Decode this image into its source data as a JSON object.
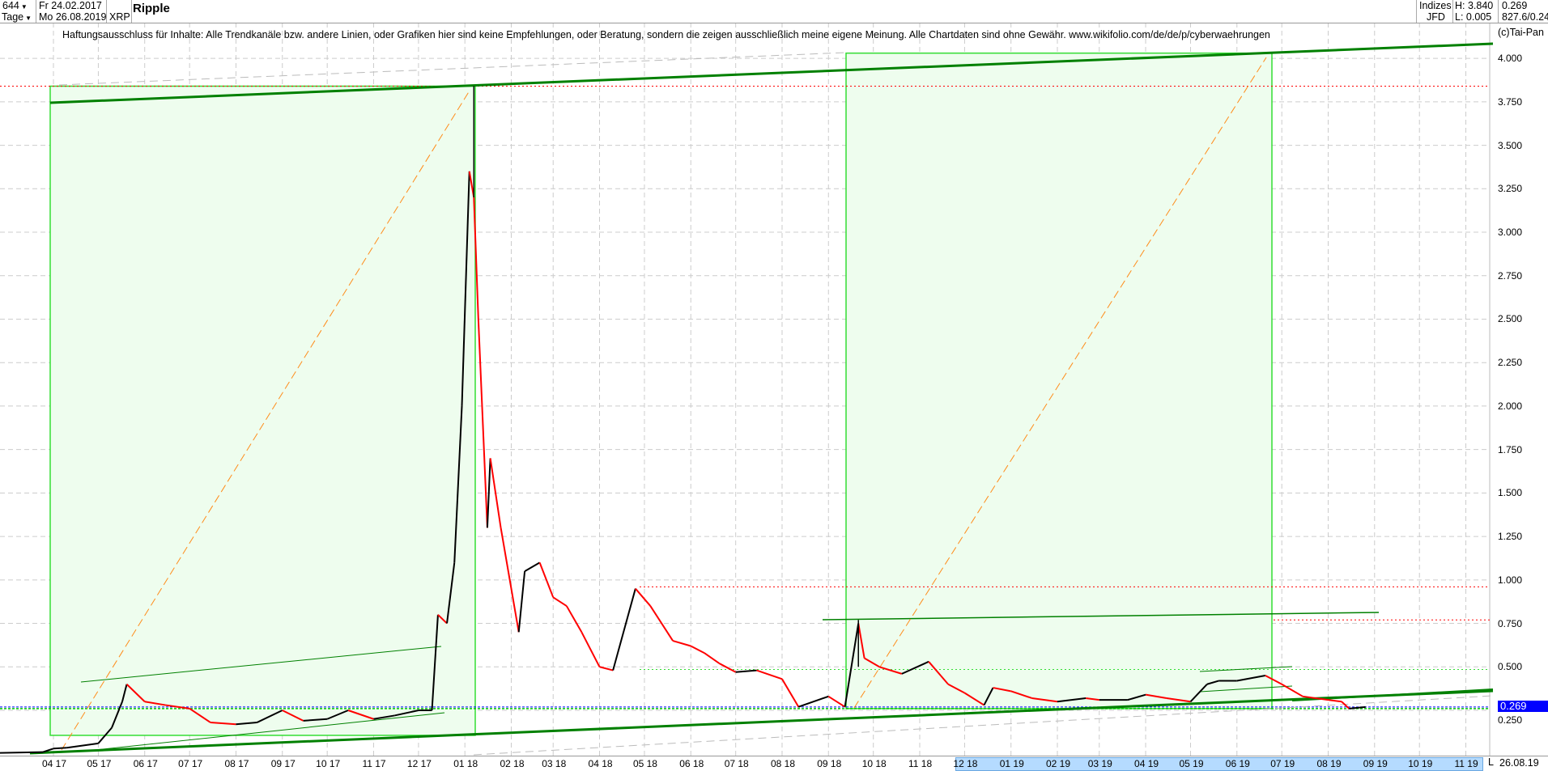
{
  "header": {
    "bars_count": "644",
    "period": "Tage",
    "start_date": "Fr 24.02.2017",
    "end_date": "Mo 26.08.2019",
    "symbol": "XRP",
    "title": "Ripple",
    "group": "Indizes",
    "source": "JFD",
    "high": "H: 3.840",
    "low": "L: 0.005",
    "last": "0.269",
    "extra": "827.6/0.24"
  },
  "disclaimer": "Haftungsausschluss für Inhalte: Alle Trendkanäle bzw. andere Linien, oder Grafiken hier sind keine Empfehlungen, oder Beratung, sondern die zeigen ausschließlich meine eigene Meinung. Alle Chartdaten sind ohne Gewähr.  www.wikifolio.com/de/de/p/cyberwaehrungen",
  "copyright": "(c)Tai-Pan",
  "footer": {
    "mode": "L",
    "last_date": "26.08.19"
  },
  "colors": {
    "up": "#000000",
    "down": "#ff0000",
    "trend": "#008000",
    "box_fill": "#eefdee",
    "box_border": "#33dd33",
    "fib": "#ff8c1a",
    "level": "#ff0000",
    "price_tag": "#0000ff"
  },
  "chart_data": {
    "type": "line",
    "ylim": [
      0,
      4.1
    ],
    "yticks": [
      "0.250",
      "0.500",
      "0.750",
      "1.000",
      "1.250",
      "1.500",
      "1.750",
      "2.000",
      "2.250",
      "2.500",
      "2.750",
      "3.000",
      "3.250",
      "3.500",
      "3.750",
      "4.000"
    ],
    "xticks": [
      "04 17",
      "05 17",
      "06 17",
      "07 17",
      "08 17",
      "09 17",
      "10 17",
      "11 17",
      "12 17",
      "01 18",
      "02 18",
      "03 18",
      "04 18",
      "05 18",
      "06 18",
      "07 18",
      "08 18",
      "09 18",
      "10 18",
      "11 18",
      "12 18",
      "01 19",
      "02 19",
      "03 19",
      "04 19",
      "05 19",
      "06 19",
      "07 19",
      "08 19",
      "09 19",
      "10 19",
      "11 19"
    ],
    "grid": true,
    "last_price": "0.269",
    "levels": [
      3.84,
      0.96,
      0.77,
      0.485,
      0.26
    ],
    "series": [
      {
        "dates": [
          "2017-02-24",
          "2017-03-25",
          "2017-04-01",
          "2017-04-10",
          "2017-05-01",
          "2017-05-10",
          "2017-05-17",
          "2017-05-20",
          "2017-06-01",
          "2017-06-15",
          "2017-07-01",
          "2017-07-15",
          "2017-08-01",
          "2017-08-15",
          "2017-09-01",
          "2017-09-15",
          "2017-10-01",
          "2017-10-15",
          "2017-11-01",
          "2017-11-15",
          "2017-12-01",
          "2017-12-10",
          "2017-12-14",
          "2017-12-20",
          "2017-12-25",
          "2017-12-30",
          "2018-01-04",
          "2018-01-07",
          "2018-01-10",
          "2018-01-16",
          "2018-01-18",
          "2018-01-25",
          "2018-02-06",
          "2018-02-10",
          "2018-02-20",
          "2018-03-01",
          "2018-03-10",
          "2018-03-20",
          "2018-04-01",
          "2018-04-10",
          "2018-04-25",
          "2018-05-05",
          "2018-05-20",
          "2018-06-01",
          "2018-06-10",
          "2018-06-20",
          "2018-07-01",
          "2018-07-15",
          "2018-08-01",
          "2018-08-12",
          "2018-09-01",
          "2018-09-12",
          "2018-09-21",
          "2018-09-25",
          "2018-10-05",
          "2018-10-20",
          "2018-11-07",
          "2018-11-15",
          "2018-11-20",
          "2018-12-01",
          "2018-12-14",
          "2018-12-20",
          "2019-01-01",
          "2019-01-15",
          "2019-02-01",
          "2019-02-20",
          "2019-03-01",
          "2019-03-20",
          "2019-04-01",
          "2019-04-15",
          "2019-05-01",
          "2019-05-12",
          "2019-05-20",
          "2019-06-01",
          "2019-06-20",
          "2019-07-01",
          "2019-07-15",
          "2019-08-01",
          "2019-08-10",
          "2019-08-15",
          "2019-08-26"
        ],
        "close": [
          0.005,
          0.01,
          0.03,
          0.035,
          0.06,
          0.15,
          0.3,
          0.4,
          0.3,
          0.28,
          0.26,
          0.18,
          0.17,
          0.18,
          0.25,
          0.19,
          0.2,
          0.25,
          0.2,
          0.22,
          0.25,
          0.25,
          0.8,
          0.75,
          1.1,
          2.0,
          3.35,
          3.2,
          2.5,
          1.3,
          1.7,
          1.3,
          0.7,
          1.05,
          1.1,
          0.9,
          0.85,
          0.7,
          0.5,
          0.48,
          0.95,
          0.85,
          0.65,
          0.62,
          0.58,
          0.52,
          0.47,
          0.48,
          0.43,
          0.27,
          0.33,
          0.27,
          0.75,
          0.55,
          0.5,
          0.46,
          0.53,
          0.45,
          0.4,
          0.35,
          0.28,
          0.38,
          0.36,
          0.32,
          0.3,
          0.32,
          0.31,
          0.31,
          0.34,
          0.32,
          0.3,
          0.4,
          0.42,
          0.42,
          0.45,
          0.4,
          0.33,
          0.31,
          0.3,
          0.26,
          0.269
        ]
      }
    ]
  }
}
